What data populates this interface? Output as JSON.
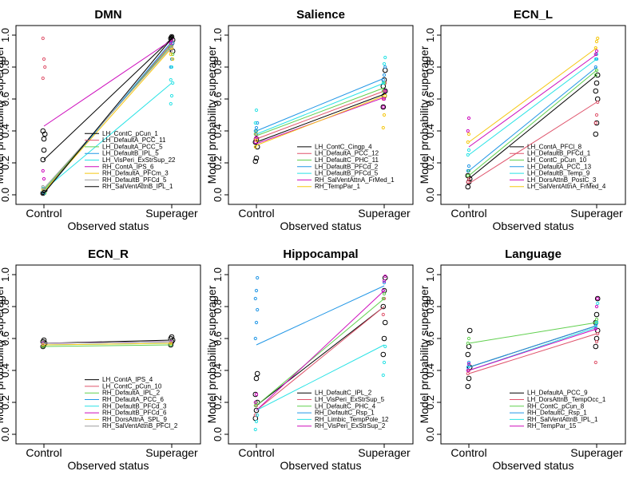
{
  "chart_data": [
    {
      "type": "scatter",
      "title": "DMN",
      "xlabel": "Observed status",
      "ylabel": "Model probability superager",
      "categories": [
        "Control",
        "Superager"
      ],
      "ylim": [
        0,
        1
      ],
      "yticks": [
        "0.0",
        "0.2",
        "0.4",
        "0.6",
        "0.8",
        "1.0"
      ],
      "legend_position": "bottom-right",
      "series": [
        {
          "name": "LH_ContC_pCun_1",
          "color": "#000000",
          "line": [
            0.22,
            0.98
          ],
          "control": [
            0.22,
            0.35,
            0.38,
            0.4,
            0.28,
            0.03,
            0.01
          ],
          "superager": [
            0.92,
            0.95,
            0.97,
            0.98,
            0.99,
            0.9
          ]
        },
        {
          "name": "LH_DefaultA_PCC_11",
          "color": "#DF536B",
          "line": [
            0.02,
            0.95
          ],
          "control": [
            0.98,
            0.85,
            0.8,
            0.73,
            0.03
          ],
          "superager": [
            0.9,
            0.92,
            0.95
          ]
        },
        {
          "name": "LH_DefaultA_PCC_5",
          "color": "#61D04F",
          "line": [
            0.03,
            0.94
          ],
          "control": [
            0.04,
            0.02,
            0.01
          ],
          "superager": [
            0.93,
            0.96,
            0.88
          ]
        },
        {
          "name": "LH_DefaultB_IPL_5",
          "color": "#2297E6",
          "line": [
            0.01,
            0.96
          ],
          "control": [
            0.02,
            0.01
          ],
          "superager": [
            0.8,
            0.85,
            0.95
          ]
        },
        {
          "name": "LH_VisPeri_ExStrSup_22",
          "color": "#28E2E5",
          "line": [
            0.03,
            0.7
          ],
          "control": [
            0.04,
            0.02
          ],
          "superager": [
            0.57,
            0.62,
            0.7,
            0.72,
            0.8
          ]
        },
        {
          "name": "RH_ContA_IPS_6",
          "color": "#CD0BBC",
          "line": [
            0.43,
            0.97
          ],
          "control": [
            0.15,
            0.1
          ],
          "superager": [
            0.95,
            0.97
          ]
        },
        {
          "name": "RH_DefaultA_PFCm_3",
          "color": "#F5C710",
          "line": [
            0.02,
            0.92
          ],
          "control": [
            0.03,
            0.02
          ],
          "superager": [
            0.88,
            0.92,
            0.85
          ]
        },
        {
          "name": "RH_DefaultB_PFCd_5",
          "color": "#9E9E9E",
          "line": [
            0.04,
            0.93
          ],
          "control": [
            0.05,
            0.03
          ],
          "superager": [
            0.9,
            0.93
          ]
        },
        {
          "name": "RH_SalVentAttnB_IPL_1",
          "color": "#000000",
          "line": [
            0.01,
            0.98
          ],
          "control": [
            0.01,
            0.02
          ],
          "superager": [
            0.98,
            0.99
          ]
        }
      ]
    },
    {
      "type": "scatter",
      "title": "Salience",
      "xlabel": "Observed status",
      "ylabel": "Model probability superager",
      "categories": [
        "Control",
        "Superager"
      ],
      "ylim": [
        0,
        1
      ],
      "yticks": [
        "0.0",
        "0.2",
        "0.4",
        "0.6",
        "0.8",
        "1.0"
      ],
      "legend_position": "bottom-right",
      "series": [
        {
          "name": "LH_ContC_Cingp_4",
          "color": "#000000",
          "line": [
            0.33,
            0.63
          ],
          "control": [
            0.21,
            0.23,
            0.3,
            0.33,
            0.35
          ],
          "superager": [
            0.55,
            0.62,
            0.65,
            0.68,
            0.72,
            0.78
          ]
        },
        {
          "name": "LH_DefaultA_PCC_12",
          "color": "#DF536B",
          "line": [
            0.35,
            0.65
          ],
          "control": [
            0.35,
            0.38
          ],
          "superager": [
            0.6,
            0.65,
            0.7
          ]
        },
        {
          "name": "LH_DefaultC_PHC_11",
          "color": "#61D04F",
          "line": [
            0.37,
            0.67
          ],
          "control": [
            0.38,
            0.4
          ],
          "superager": [
            0.65,
            0.7
          ]
        },
        {
          "name": "LH_DefaultB_PFCd_2",
          "color": "#2297E6",
          "line": [
            0.4,
            0.73
          ],
          "control": [
            0.4,
            0.42,
            0.45
          ],
          "superager": [
            0.72,
            0.75,
            0.8
          ]
        },
        {
          "name": "LH_DefaultB_PFCd_5",
          "color": "#28E2E5",
          "line": [
            0.38,
            0.7
          ],
          "control": [
            0.45,
            0.53
          ],
          "superager": [
            0.7,
            0.82,
            0.86
          ]
        },
        {
          "name": "RH_SalVentAttnA_FrMed_1",
          "color": "#CD0BBC",
          "line": [
            0.32,
            0.61
          ],
          "control": [
            0.33,
            0.36
          ],
          "superager": [
            0.55,
            0.6,
            0.65
          ]
        },
        {
          "name": "RH_TempPar_1",
          "color": "#F5C710",
          "line": [
            0.31,
            0.62
          ],
          "control": [
            0.3,
            0.34
          ],
          "superager": [
            0.42,
            0.5,
            0.62
          ]
        }
      ]
    },
    {
      "type": "scatter",
      "title": "ECN_L",
      "xlabel": "Observed status",
      "ylabel": "Model probability superager",
      "categories": [
        "Control",
        "Superager"
      ],
      "ylim": [
        0,
        1
      ],
      "yticks": [
        "0.0",
        "0.2",
        "0.4",
        "0.6",
        "0.8",
        "1.0"
      ],
      "legend_position": "bottom-right",
      "series": [
        {
          "name": "LH_ContA_PFCl_8",
          "color": "#000000",
          "line": [
            0.1,
            0.75
          ],
          "control": [
            0.05,
            0.08,
            0.1,
            0.12
          ],
          "superager": [
            0.38,
            0.45,
            0.6,
            0.65,
            0.7,
            0.75
          ]
        },
        {
          "name": "LH_DefaultB_PFCd_1",
          "color": "#DF536B",
          "line": [
            0.07,
            0.58
          ],
          "control": [
            0.08,
            0.1
          ],
          "superager": [
            0.45,
            0.5,
            0.58
          ]
        },
        {
          "name": "LH_ContC_pCun_10",
          "color": "#61D04F",
          "line": [
            0.12,
            0.78
          ],
          "control": [
            0.12,
            0.15
          ],
          "superager": [
            0.75,
            0.78
          ]
        },
        {
          "name": "LH_DefaultA_PCC_13",
          "color": "#2297E6",
          "line": [
            0.15,
            0.8
          ],
          "control": [
            0.15,
            0.18
          ],
          "superager": [
            0.8,
            0.85
          ]
        },
        {
          "name": "LH_DefaultB_Temp_9",
          "color": "#28E2E5",
          "line": [
            0.25,
            0.85
          ],
          "control": [
            0.25,
            0.28
          ],
          "superager": [
            0.85,
            0.88
          ]
        },
        {
          "name": "LH_DorsAttnB_PostC_3",
          "color": "#CD0BBC",
          "line": [
            0.3,
            0.88
          ],
          "control": [
            0.4,
            0.48
          ],
          "superager": [
            0.88,
            0.9
          ]
        },
        {
          "name": "LH_SalVentAttnA_FrMed_4",
          "color": "#F5C710",
          "line": [
            0.33,
            0.92
          ],
          "control": [
            0.33,
            0.38
          ],
          "superager": [
            0.92,
            0.96,
            0.98
          ]
        }
      ]
    },
    {
      "type": "scatter",
      "title": "ECN_R",
      "xlabel": "Observed status",
      "ylabel": "Model probability superager",
      "categories": [
        "Control",
        "Superager"
      ],
      "ylim": [
        0,
        1
      ],
      "yticks": [
        "0.0",
        "0.2",
        "0.4",
        "0.6",
        "0.8",
        "1.0"
      ],
      "legend_position": "bottom-right",
      "series": [
        {
          "name": "LH_ContA_IPS_4",
          "color": "#000000",
          "line": [
            0.57,
            0.59
          ],
          "control": [
            0.55,
            0.56,
            0.57,
            0.58,
            0.59
          ],
          "superager": [
            0.56,
            0.58,
            0.59,
            0.6,
            0.61
          ]
        },
        {
          "name": "LH_ContC_pCun_10",
          "color": "#DF536B",
          "line": [
            0.57,
            0.58
          ],
          "control": [
            0.57
          ],
          "superager": [
            0.58
          ]
        },
        {
          "name": "RH_DefaultA_IPL_2",
          "color": "#61D04F",
          "line": [
            0.55,
            0.56
          ],
          "control": [
            0.55
          ],
          "superager": [
            0.56
          ]
        },
        {
          "name": "RH_DefaultA_PCC_6",
          "color": "#2297E6",
          "line": [
            0.57,
            0.58
          ],
          "control": [
            0.57
          ],
          "superager": [
            0.58
          ]
        },
        {
          "name": "RH_DefaultB_PFCd_3",
          "color": "#28E2E5",
          "line": [
            0.56,
            0.57
          ],
          "control": [
            0.56
          ],
          "superager": [
            0.57
          ]
        },
        {
          "name": "RH_DefaultB_PFCd_6",
          "color": "#CD0BBC",
          "line": [
            0.57,
            0.58
          ],
          "control": [
            0.57
          ],
          "superager": [
            0.58
          ]
        },
        {
          "name": "RH_DorsAttnA_SPL_9",
          "color": "#F5C710",
          "line": [
            0.56,
            0.57
          ],
          "control": [
            0.56
          ],
          "superager": [
            0.57
          ]
        },
        {
          "name": "RH_SalVentAttnB_PFCl_2",
          "color": "#9E9E9E",
          "line": [
            0.57,
            0.58
          ],
          "control": [
            0.58
          ],
          "superager": [
            0.59
          ]
        }
      ]
    },
    {
      "type": "scatter",
      "title": "Hippocampal",
      "xlabel": "Observed status",
      "ylabel": "Model probability superager",
      "categories": [
        "Control",
        "Superager"
      ],
      "ylim": [
        0,
        1
      ],
      "yticks": [
        "0.0",
        "0.2",
        "0.4",
        "0.6",
        "0.8",
        "1.0"
      ],
      "legend_position": "bottom-right",
      "series": [
        {
          "name": "LH_DefaultC_IPL_2",
          "color": "#000000",
          "line": [
            0.18,
            0.8
          ],
          "control": [
            0.1,
            0.15,
            0.2,
            0.25,
            0.35,
            0.38
          ],
          "superager": [
            0.5,
            0.6,
            0.7,
            0.8,
            0.9,
            0.98
          ]
        },
        {
          "name": "LH_VisPeri_ExStrSup_5",
          "color": "#DF536B",
          "line": [
            0.15,
            0.8
          ],
          "control": [
            0.12,
            0.18
          ],
          "superager": [
            0.75,
            0.85
          ]
        },
        {
          "name": "LH_DefaultC_PHC_4",
          "color": "#61D04F",
          "line": [
            0.18,
            0.85
          ],
          "control": [
            0.18,
            0.2
          ],
          "superager": [
            0.85,
            0.88
          ]
        },
        {
          "name": "RH_DefaultC_Rsp_1",
          "color": "#2297E6",
          "line": [
            0.56,
            0.93
          ],
          "control": [
            0.6,
            0.7,
            0.78,
            0.85,
            0.9,
            0.98
          ],
          "superager": [
            0.9,
            0.95
          ]
        },
        {
          "name": "RH_Limbic_TempPole_12",
          "color": "#28E2E5",
          "line": [
            0.15,
            0.56
          ],
          "control": [
            0.03,
            0.08,
            0.12
          ],
          "superager": [
            0.37,
            0.45,
            0.55
          ]
        },
        {
          "name": "RH_VisPeri_ExStrSup_2",
          "color": "#CD0BBC",
          "line": [
            0.15,
            0.9
          ],
          "control": [
            0.2,
            0.25
          ],
          "superager": [
            0.9,
            0.96,
            0.99
          ]
        }
      ]
    },
    {
      "type": "scatter",
      "title": "Language",
      "xlabel": "Observed status",
      "ylabel": "Model probability superager",
      "categories": [
        "Control",
        "Superager"
      ],
      "ylim": [
        0,
        1
      ],
      "yticks": [
        "0.0",
        "0.2",
        "0.4",
        "0.6",
        "0.8",
        "1.0"
      ],
      "legend_position": "bottom-right",
      "series": [
        {
          "name": "LH_DefaultA_PCC_9",
          "color": "#000000",
          "line": [
            0.42,
            0.68
          ],
          "control": [
            0.3,
            0.35,
            0.42,
            0.5,
            0.55,
            0.65
          ],
          "superager": [
            0.55,
            0.6,
            0.65,
            0.7,
            0.75,
            0.85
          ]
        },
        {
          "name": "LH_DorsAttnB_TempOcc_1",
          "color": "#DF536B",
          "line": [
            0.38,
            0.63
          ],
          "control": [
            0.38,
            0.4
          ],
          "superager": [
            0.45,
            0.58,
            0.63
          ]
        },
        {
          "name": "RH_ContC_pCun_8",
          "color": "#61D04F",
          "line": [
            0.57,
            0.7
          ],
          "control": [
            0.57,
            0.6
          ],
          "superager": [
            0.7,
            0.72
          ]
        },
        {
          "name": "RH_DefaultC_Rsp_1",
          "color": "#2297E6",
          "line": [
            0.42,
            0.68
          ],
          "control": [
            0.42,
            0.45
          ],
          "superager": [
            0.68,
            0.7
          ]
        },
        {
          "name": "RH_SalVentAttnB_IPL_1",
          "color": "#28E2E5",
          "line": [
            0.4,
            0.67
          ],
          "control": [
            0.4,
            0.43
          ],
          "superager": [
            0.67,
            0.7,
            0.82
          ]
        },
        {
          "name": "RH_TempPar_15",
          "color": "#CD0BBC",
          "line": [
            0.4,
            0.66
          ],
          "control": [
            0.4,
            0.44
          ],
          "superager": [
            0.66,
            0.8,
            0.85
          ]
        }
      ]
    }
  ]
}
